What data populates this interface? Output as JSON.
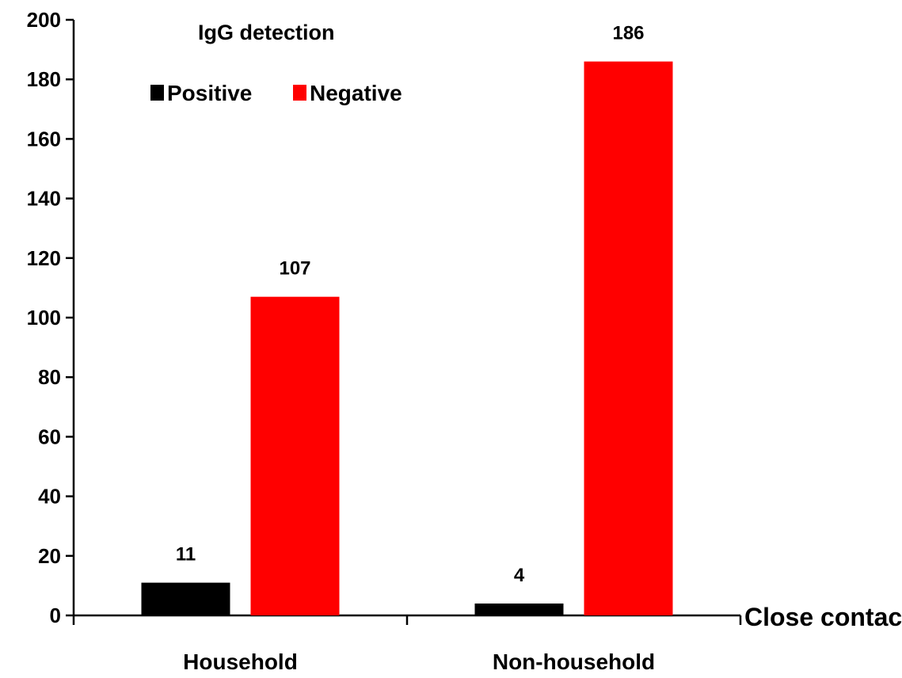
{
  "chart_data": {
    "type": "bar",
    "categories": [
      "Household",
      "Non-household"
    ],
    "series": [
      {
        "name": "Positive",
        "values": [
          11,
          4
        ],
        "color": "#000000"
      },
      {
        "name": "Negative",
        "values": [
          107,
          186
        ],
        "color": "#ff0000"
      }
    ],
    "legend_title": "IgG detection",
    "legend_position": "top-left",
    "xlabel": "Close contact",
    "ylabel": "",
    "ylim": [
      0,
      200
    ],
    "yticks": [
      0,
      20,
      40,
      60,
      80,
      100,
      120,
      140,
      160,
      180,
      200
    ],
    "data_labels": [
      [
        "11",
        "4"
      ],
      [
        "107",
        "186"
      ]
    ],
    "grid": false
  }
}
